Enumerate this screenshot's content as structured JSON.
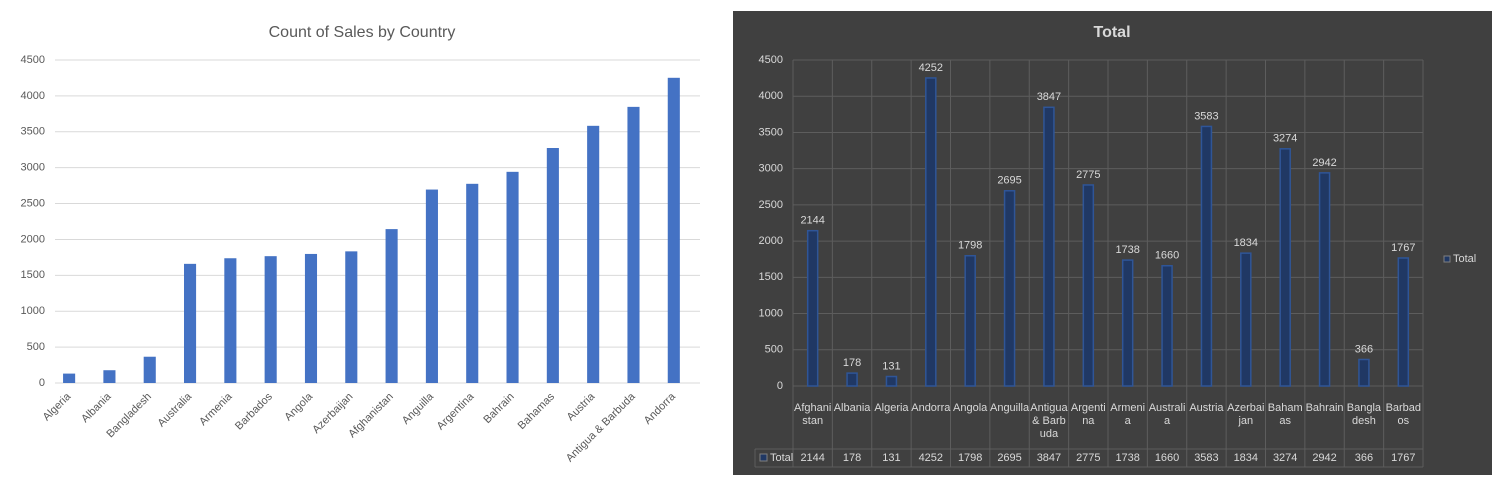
{
  "chart_data": [
    {
      "type": "bar",
      "title": "Count of Sales by Country",
      "categories": [
        "Algeria",
        "Albania",
        "Bangladesh",
        "Australia",
        "Armenia",
        "Barbados",
        "Angola",
        "Azerbaijan",
        "Afghanistan",
        "Anguilla",
        "Argentina",
        "Bahrain",
        "Bahamas",
        "Austria",
        "Antigua & Barbuda",
        "Andorra"
      ],
      "values": [
        131,
        178,
        366,
        1660,
        1738,
        1767,
        1798,
        1834,
        2144,
        2695,
        2775,
        2942,
        3274,
        3583,
        3847,
        4252
      ],
      "color": "#4472c4",
      "ylim": [
        0,
        4500
      ],
      "yticks": [
        0,
        500,
        1000,
        1500,
        2000,
        2500,
        3000,
        3500,
        4000,
        4500
      ],
      "grid": true
    },
    {
      "type": "bar",
      "title": "Total",
      "categories": [
        "Afghanistan",
        "Albania",
        "Algeria",
        "Andorra",
        "Angola",
        "Anguilla",
        "Antigua & Barbuda",
        "Argentina",
        "Armenia",
        "Australia",
        "Austria",
        "Azerbaijan",
        "Bahamas",
        "Bahrain",
        "Bangladesh",
        "Barbados"
      ],
      "series": [
        {
          "name": "Total",
          "color": "#203864",
          "values": [
            2144,
            178,
            131,
            4252,
            1798,
            2695,
            3847,
            2775,
            1738,
            1660,
            3583,
            1834,
            3274,
            2942,
            366,
            1767
          ]
        }
      ],
      "ylim": [
        0,
        4500
      ],
      "yticks": [
        0,
        500,
        1000,
        1500,
        2000,
        2500,
        3000,
        3500,
        4000,
        4500
      ],
      "grid": true,
      "legend": "right",
      "data_labels": true,
      "data_table": true
    }
  ]
}
